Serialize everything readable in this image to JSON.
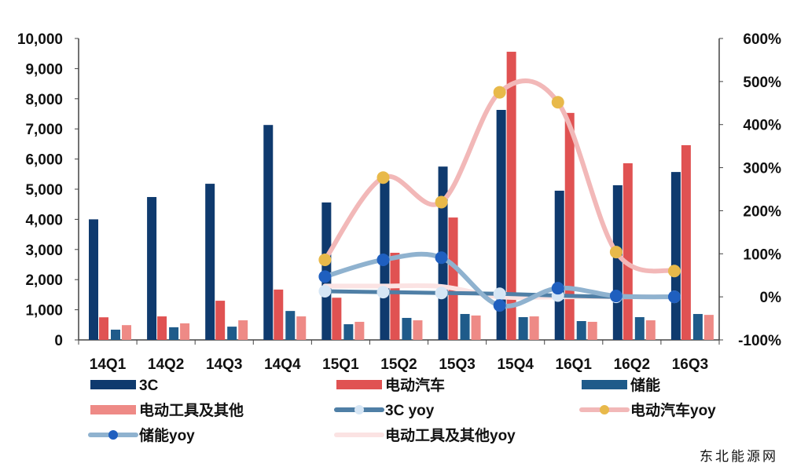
{
  "chart_data": {
    "type": "bar",
    "title": "",
    "categories": [
      "14Q1",
      "14Q2",
      "14Q3",
      "14Q4",
      "15Q1",
      "15Q2",
      "15Q3",
      "15Q4",
      "16Q1",
      "16Q2",
      "16Q3"
    ],
    "y_left": {
      "range": [
        0,
        10000
      ],
      "ticks": [
        "0",
        "1,000",
        "2,000",
        "3,000",
        "4,000",
        "5,000",
        "6,000",
        "7,000",
        "8,000",
        "9,000",
        "10,000"
      ]
    },
    "y_right": {
      "range": [
        -100,
        600
      ],
      "ticks": [
        "-100%",
        "0%",
        "100%",
        "200%",
        "300%",
        "400%",
        "500%",
        "600%"
      ]
    },
    "grid": false,
    "legend_placement": "bottom",
    "bar_series": [
      {
        "name": "3C",
        "color": "#0f3a6e",
        "values": [
          4000,
          4740,
          5180,
          7130,
          4560,
          5290,
          5750,
          7630,
          4950,
          5130,
          5570
        ]
      },
      {
        "name": "电动汽车",
        "color": "#e05252",
        "values": [
          750,
          780,
          1300,
          1670,
          1400,
          2890,
          4060,
          9560,
          7530,
          5860,
          6460
        ]
      },
      {
        "name": "储能",
        "color": "#1f5b8a",
        "values": [
          340,
          420,
          440,
          960,
          520,
          730,
          860,
          755,
          625,
          755,
          860
        ]
      },
      {
        "name": "电动工具及其他",
        "color": "#ee8a86",
        "values": [
          490,
          550,
          650,
          780,
          600,
          650,
          810,
          780,
          600,
          650,
          830
        ]
      }
    ],
    "line_series": [
      {
        "name": "3C yoy",
        "color": "#4f7fa6",
        "marker": "#d6e6f5",
        "values": [
          null,
          null,
          null,
          null,
          13,
          11,
          9,
          7,
          3,
          0,
          0
        ]
      },
      {
        "name": "电动汽车yoy",
        "color": "#f2b8b8",
        "marker": "#e8b94a",
        "values": [
          null,
          null,
          null,
          null,
          86,
          277,
          220,
          475,
          452,
          104,
          60
        ]
      },
      {
        "name": "储能yoy",
        "color": "#8fb2cf",
        "marker": "#1f5fbf",
        "values": [
          null,
          null,
          null,
          null,
          47,
          86,
          91,
          -20,
          20,
          2,
          0
        ]
      },
      {
        "name": "电动工具及其他yoy",
        "color": "#fbe3e3",
        "marker": null,
        "values": [
          null,
          null,
          null,
          null,
          25,
          25,
          24,
          0,
          0,
          0,
          0
        ]
      }
    ]
  },
  "watermark": "东北能源网"
}
